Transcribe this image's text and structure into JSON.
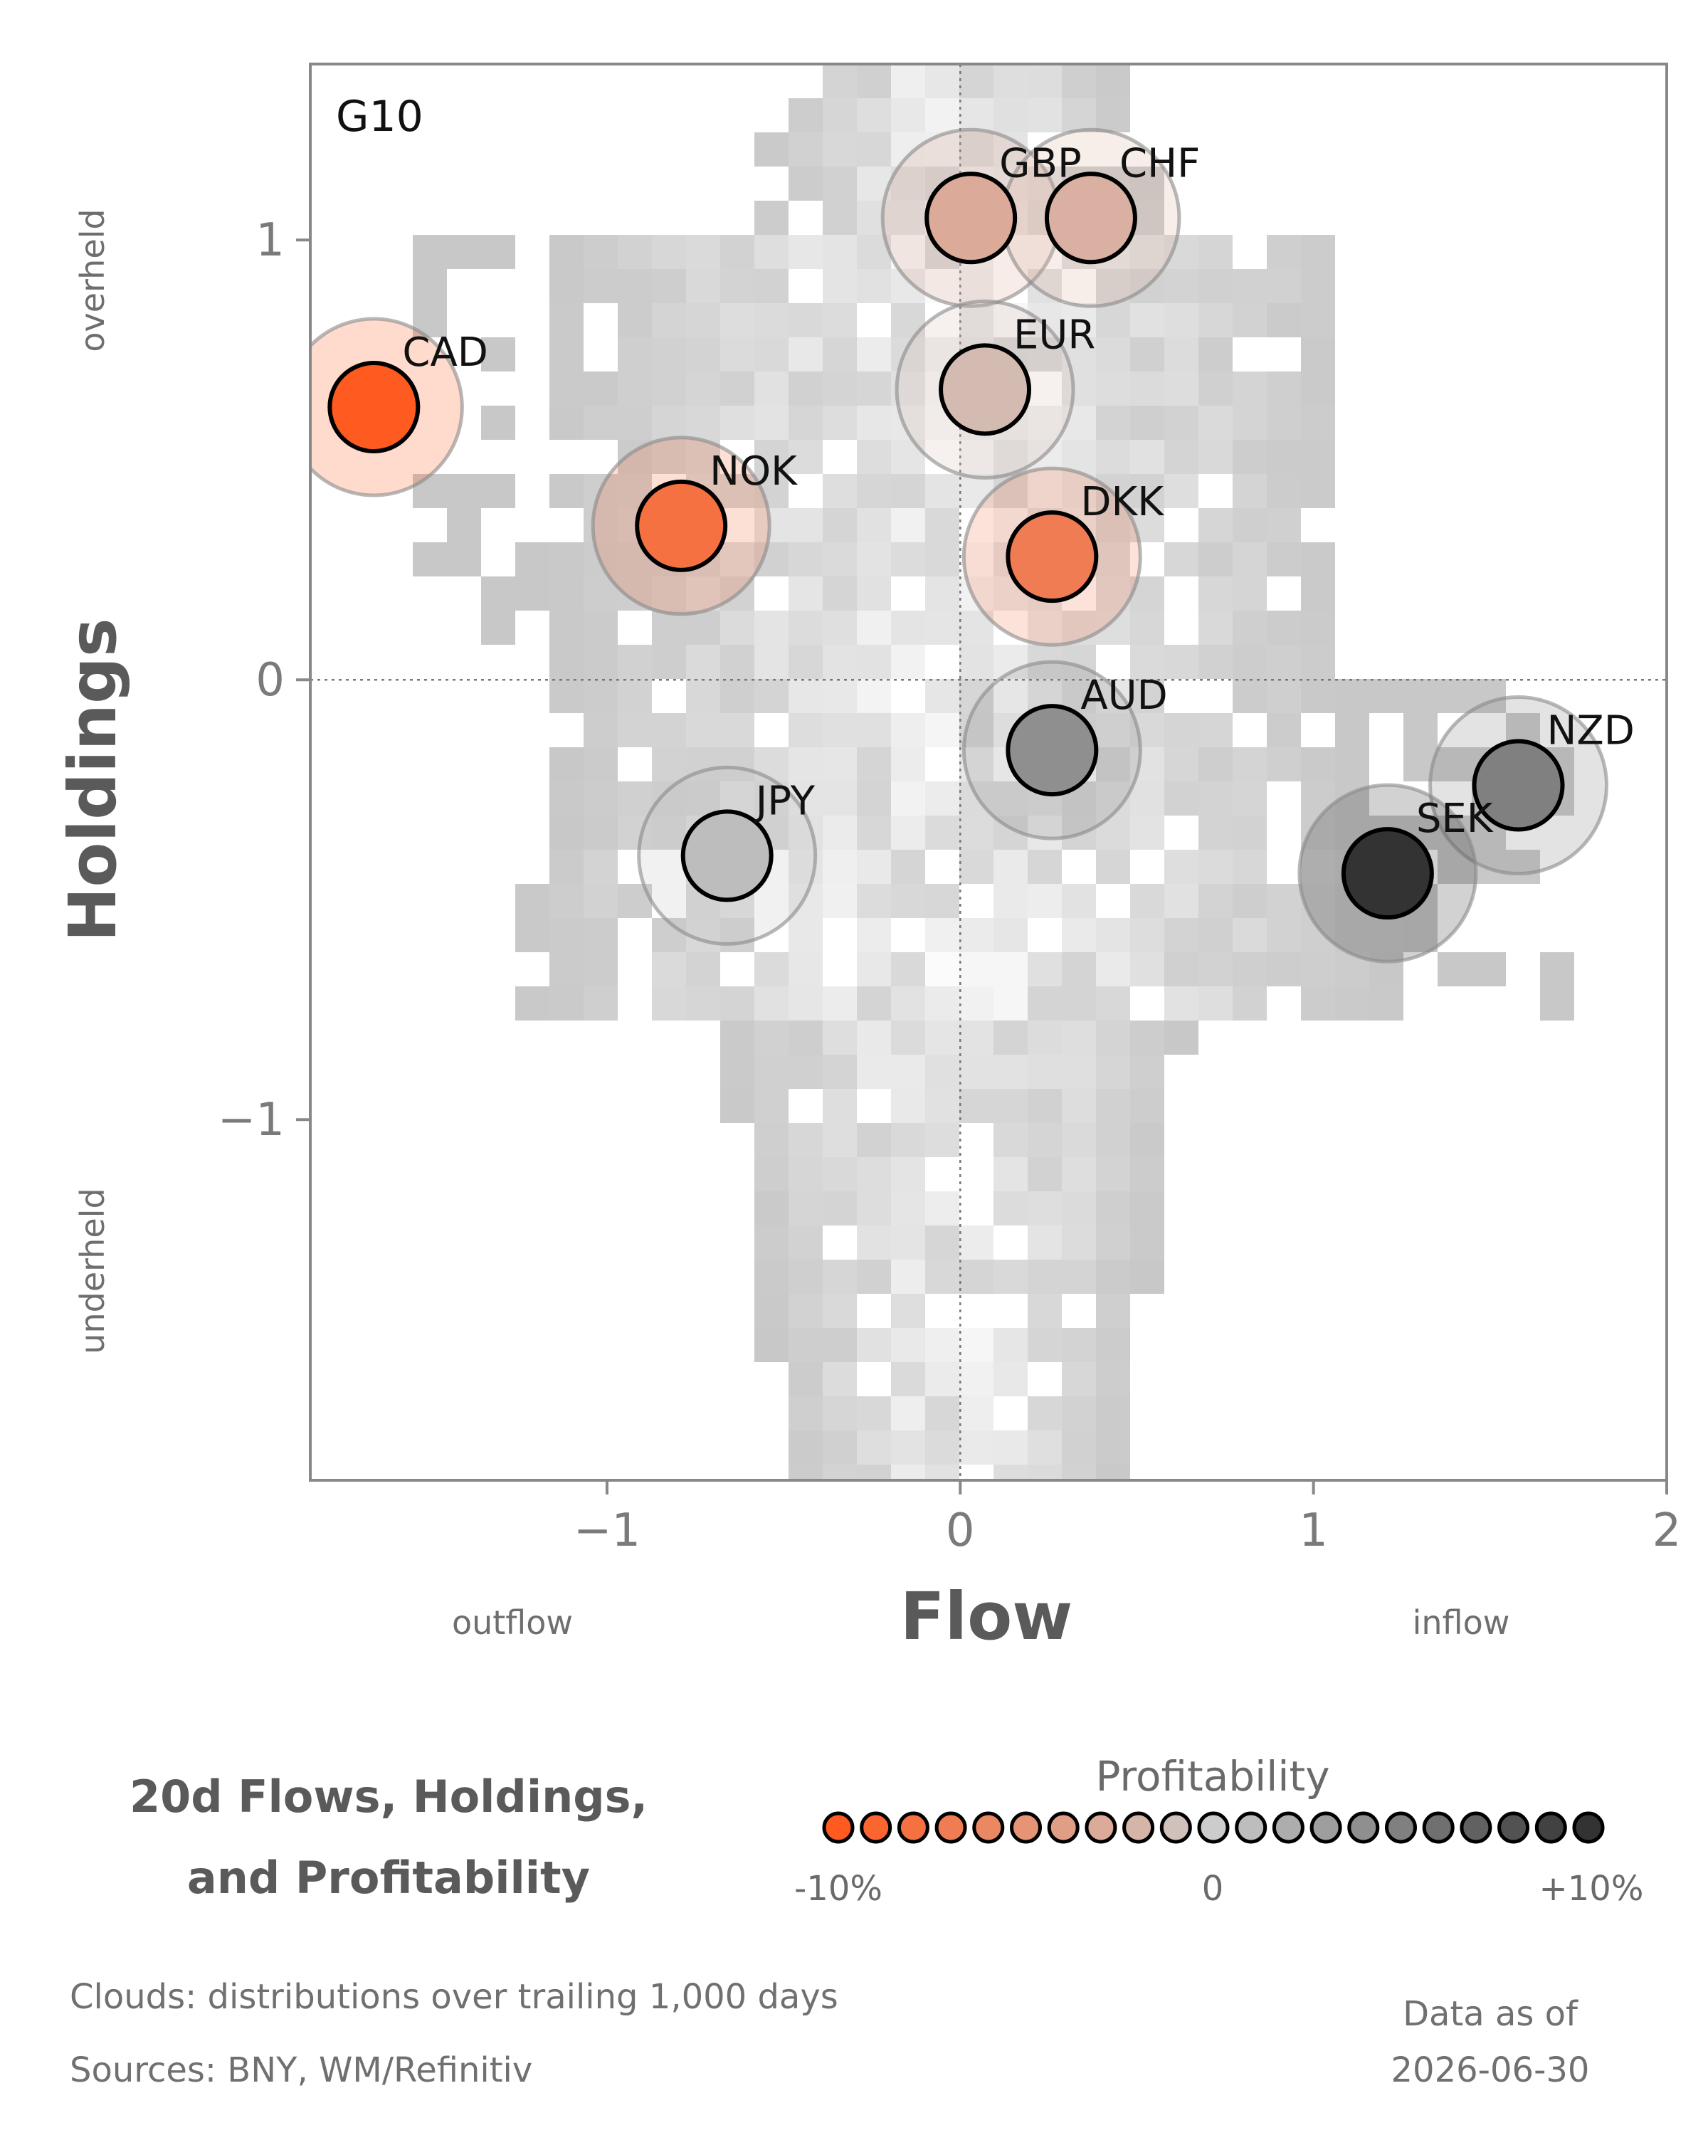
{
  "chart_data": {
    "type": "scatter",
    "region_label": "G10",
    "xlabel": "Flow",
    "ylabel": "Holdings",
    "x_side_labels": {
      "negative": "outflow",
      "positive": "inflow"
    },
    "y_side_labels": {
      "positive": "overheld",
      "negative": "underheld"
    },
    "xlim": [
      -1.84,
      2.0
    ],
    "ylim": [
      -1.82,
      1.4
    ],
    "xticks": [
      {
        "value": -1,
        "label": "−1"
      },
      {
        "value": 0,
        "label": "0"
      },
      {
        "value": 1,
        "label": "1"
      },
      {
        "value": 2,
        "label": "2"
      }
    ],
    "yticks": [
      {
        "value": 1,
        "label": "1"
      },
      {
        "value": 0,
        "label": "0"
      },
      {
        "value": -1,
        "label": "−1"
      }
    ],
    "points": [
      {
        "name": "CAD",
        "flow": -1.66,
        "holdings": 0.62,
        "profitability": -10
      },
      {
        "name": "NOK",
        "flow": -0.79,
        "holdings": 0.35,
        "profitability": -8
      },
      {
        "name": "GBP",
        "flow": 0.03,
        "holdings": 1.05,
        "profitability": -3
      },
      {
        "name": "CHF",
        "flow": 0.37,
        "holdings": 1.05,
        "profitability": -2.5
      },
      {
        "name": "EUR",
        "flow": 0.07,
        "holdings": 0.66,
        "profitability": -1.5
      },
      {
        "name": "DKK",
        "flow": 0.26,
        "holdings": 0.28,
        "profitability": -7
      },
      {
        "name": "AUD",
        "flow": 0.26,
        "holdings": -0.16,
        "profitability": 4
      },
      {
        "name": "JPY",
        "flow": -0.66,
        "holdings": -0.4,
        "profitability": 1
      },
      {
        "name": "NZD",
        "flow": 1.58,
        "holdings": -0.24,
        "profitability": 5
      },
      {
        "name": "SEK",
        "flow": 1.21,
        "holdings": -0.44,
        "profitability": 10
      }
    ],
    "legend": {
      "title": "Profitability",
      "min_label": "-10%",
      "mid_label": "0",
      "max_label": "+10%",
      "range": [
        -10,
        10
      ],
      "swatch_count": 21
    },
    "colors": {
      "negative": "#ff5a1f",
      "neutral": "#cccccc",
      "positive": "#333333",
      "cloud": "#c8c8c8"
    }
  },
  "title_lines": [
    "20d Flows, Holdings,",
    "and Profitability"
  ],
  "footnotes": {
    "clouds": "Clouds:  distributions over trailing 1,000 days",
    "sources": "Sources:  BNY, WM/Refinitiv",
    "data_as_of_label": "Data as of",
    "data_as_of_date": "2026-06-30"
  }
}
